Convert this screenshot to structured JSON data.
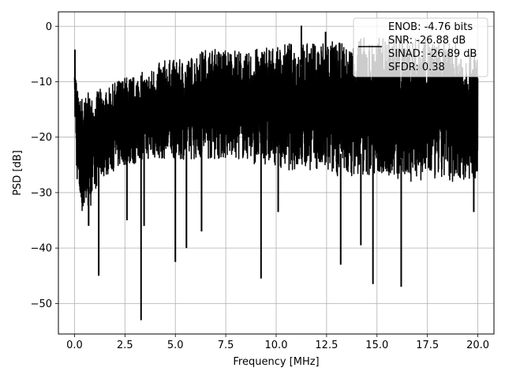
{
  "chart_data": {
    "type": "line",
    "title": "",
    "xlabel": "Frequency [MHz]",
    "ylabel": "PSD [dB]",
    "xlim": [
      -0.8,
      20.8
    ],
    "ylim": [
      -55.5,
      2.6
    ],
    "x_ticks": [
      0.0,
      2.5,
      5.0,
      7.5,
      10.0,
      12.5,
      15.0,
      17.5,
      20.0
    ],
    "x_tick_labels": [
      "0.0",
      "2.5",
      "5.0",
      "7.5",
      "10.0",
      "12.5",
      "15.0",
      "17.5",
      "20.0"
    ],
    "y_ticks": [
      0,
      -10,
      -20,
      -30,
      -40,
      -50
    ],
    "y_tick_labels": [
      "0",
      "−10",
      "−20",
      "−30",
      "−40",
      "−50"
    ],
    "grid": true,
    "legend_position": "top-right",
    "line_color": "#000000",
    "series": [
      {
        "name": "ENOB: -4.76 bits\nSNR: -26.88 dB\nSINAD: -26.89 dB\nSFDR: 0.38",
        "legend_lines": [
          "ENOB: -4.76 bits",
          "SNR: -26.88 dB",
          "SINAD: -26.89 dB",
          "SFDR: 0.38"
        ],
        "x": [
          0.0,
          0.05,
          0.1,
          0.2,
          0.3,
          0.4,
          0.5,
          0.6,
          0.75,
          1.0,
          1.2,
          1.5,
          2.0,
          2.5,
          3.0,
          3.3,
          3.5,
          4.0,
          4.5,
          5.0,
          5.5,
          6.0,
          6.5,
          7.0,
          7.5,
          8.0,
          8.5,
          9.0,
          9.25,
          9.5,
          10.0,
          10.5,
          11.0,
          11.5,
          11.3,
          12.0,
          12.5,
          13.0,
          13.3,
          13.5,
          14.0,
          14.2,
          14.5,
          14.7,
          15.0,
          15.5,
          16.0,
          16.2,
          16.5,
          17.0,
          17.5,
          18.0,
          18.5,
          19.0,
          19.5,
          19.8,
          20.0
        ],
        "upper": [
          -4.5,
          -8,
          -9,
          -13,
          -13,
          -12,
          -13,
          -12,
          -12,
          -13,
          -11,
          -12,
          -10,
          -9,
          -9,
          -8,
          -9,
          -7,
          -6,
          -6,
          -6,
          -5,
          -4,
          -4,
          -4,
          -4,
          -5,
          -4,
          -4,
          -3,
          -4,
          -3,
          -3,
          -3,
          -3,
          -3,
          -2,
          -3,
          -3,
          -4,
          -2,
          -2,
          -2,
          -3,
          -2,
          -2,
          -2,
          -2,
          -2,
          -2,
          -2,
          -3,
          -3,
          -3,
          -4,
          -4,
          -4
        ],
        "lower": [
          -15,
          -20,
          -27,
          -30,
          -33,
          -34,
          -34,
          -33,
          -33,
          -30,
          -28,
          -27,
          -26,
          -25,
          -25,
          -24,
          -24,
          -24,
          -24,
          -24,
          -24,
          -24,
          -24,
          -24,
          -24,
          -24,
          -24,
          -25,
          -25,
          -25,
          -25,
          -26,
          -26,
          -26,
          -26,
          -26,
          -27,
          -27,
          -27,
          -27,
          -27,
          -27,
          -27,
          -27,
          -27,
          -27,
          -28,
          -28,
          -28,
          -28,
          -28,
          -28,
          -28,
          -28,
          -28,
          -28,
          -28
        ],
        "spikes": [
          {
            "x": 0.7,
            "y": -36.0
          },
          {
            "x": 1.2,
            "y": -45.0
          },
          {
            "x": 2.6,
            "y": -35.0
          },
          {
            "x": 3.3,
            "y": -53.0
          },
          {
            "x": 3.45,
            "y": -36.0
          },
          {
            "x": 5.0,
            "y": -42.5
          },
          {
            "x": 5.55,
            "y": -40.0
          },
          {
            "x": 6.3,
            "y": -37.0
          },
          {
            "x": 9.25,
            "y": -45.5
          },
          {
            "x": 10.1,
            "y": -33.5
          },
          {
            "x": 13.2,
            "y": -43.0
          },
          {
            "x": 14.2,
            "y": -39.5
          },
          {
            "x": 14.8,
            "y": -46.5
          },
          {
            "x": 16.2,
            "y": -47.0
          },
          {
            "x": 19.8,
            "y": -33.5
          }
        ],
        "peaks": [
          {
            "x": 0.02,
            "y": -4.2
          },
          {
            "x": 11.25,
            "y": 0.1
          },
          {
            "x": 12.45,
            "y": -1.0
          }
        ]
      }
    ]
  }
}
